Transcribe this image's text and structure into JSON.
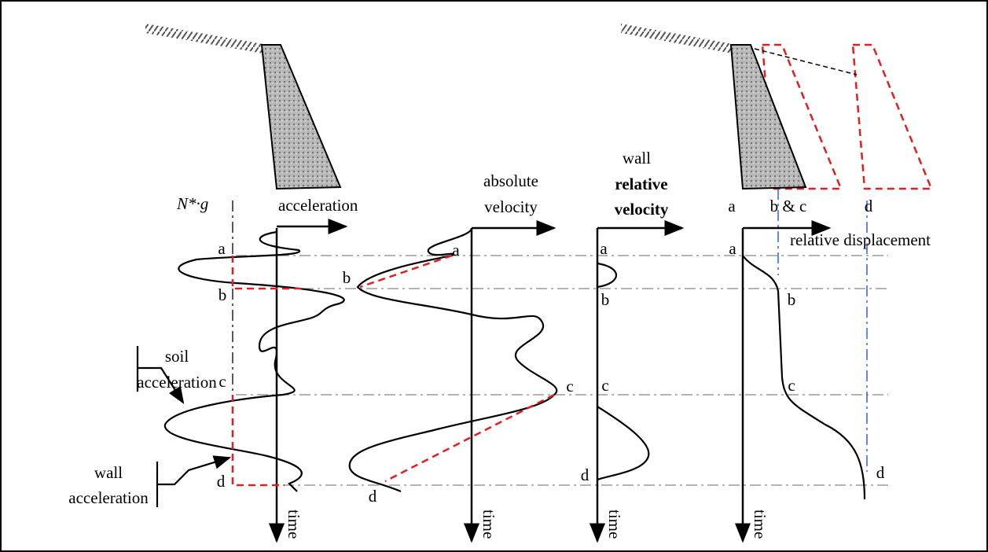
{
  "reference_label": "N*·g",
  "panels": [
    {
      "title": [
        "acceleration"
      ],
      "time": "time",
      "points": [
        "a",
        "b",
        "c",
        "d"
      ]
    },
    {
      "title": [
        "absolute",
        "velocity"
      ],
      "time": "time",
      "points": [
        "a",
        "b",
        "c",
        "d"
      ]
    },
    {
      "title": [
        "wall",
        "relative",
        "velocity"
      ],
      "time": "time",
      "points": [
        "a",
        "b",
        "c",
        "d"
      ]
    },
    {
      "title": [
        "relative displacement"
      ],
      "time": "time",
      "points": [
        "a",
        "b",
        "c",
        "d"
      ]
    }
  ],
  "wall_positions": [
    "a",
    "b & c",
    "d"
  ],
  "callouts": {
    "soil": [
      "soil",
      "acceleration"
    ],
    "wall": [
      "wall",
      "acceleration"
    ]
  }
}
